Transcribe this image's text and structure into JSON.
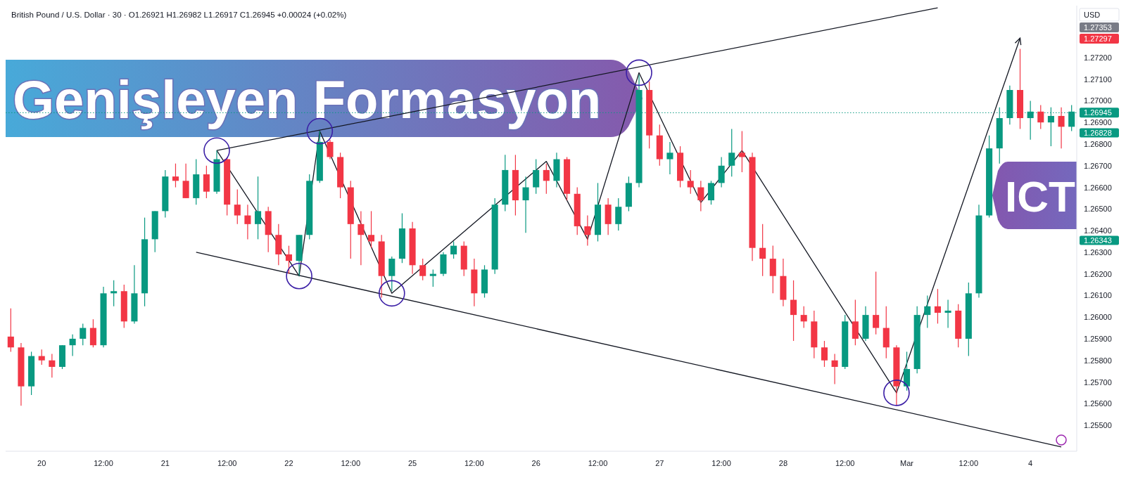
{
  "chart_data": {
    "type": "candlestick",
    "title": "Genişleyen Formasyon",
    "subtitle": "ICT",
    "annotations": [
      "British Pound / U.S. Dollar · 30 · O1.26921 H1.26982 L1.26917 C1.26945 +0.00024 (+0.02%)",
      "USD",
      "1.27353",
      "1.27297",
      "1.26828",
      "1.26343"
    ],
    "categories": [
      null,
      null,
      null,
      "20",
      null,
      null,
      null,
      null,
      null,
      "12:00",
      null,
      null,
      null,
      null,
      null,
      "21",
      null,
      null,
      null,
      null,
      null,
      "12:00",
      null,
      null,
      null,
      null,
      null,
      "22",
      null,
      null,
      null,
      null,
      null,
      "12:00",
      null,
      null,
      null,
      null,
      null,
      "25",
      null,
      null,
      null,
      null,
      null,
      "12:00",
      null,
      null,
      null,
      null,
      null,
      "26",
      null,
      null,
      null,
      null,
      null,
      "12:00",
      null,
      null,
      null,
      null,
      null,
      "27",
      null,
      null,
      null,
      null,
      null,
      "12:00",
      null,
      null,
      null,
      null,
      null,
      "28",
      null,
      null,
      null,
      null,
      null,
      "12:00",
      null,
      null,
      null,
      null,
      null,
      "Mar",
      null,
      null,
      null,
      null,
      null,
      "12:00",
      null,
      null,
      null,
      null,
      null,
      "4",
      null,
      null,
      null,
      null
    ],
    "ohlc": [
      [
        1.2591,
        1.2604,
        1.2584,
        1.2586
      ],
      [
        1.2586,
        1.2588,
        1.2559,
        1.2568
      ],
      [
        1.2568,
        1.2584,
        1.2564,
        1.2582
      ],
      [
        1.2582,
        1.2585,
        1.2578,
        1.258
      ],
      [
        1.258,
        1.2583,
        1.2572,
        1.2577
      ],
      [
        1.2577,
        1.2587,
        1.2576,
        1.2587
      ],
      [
        1.2587,
        1.2592,
        1.2582,
        1.259
      ],
      [
        1.259,
        1.2597,
        1.2587,
        1.2595
      ],
      [
        1.2595,
        1.2599,
        1.2586,
        1.2587
      ],
      [
        1.2587,
        1.2614,
        1.2586,
        1.2611
      ],
      [
        1.2611,
        1.2617,
        1.2605,
        1.2612
      ],
      [
        1.2612,
        1.2615,
        1.2595,
        1.2598
      ],
      [
        1.2598,
        1.2624,
        1.2597,
        1.2611
      ],
      [
        1.2611,
        1.2646,
        1.2605,
        1.2636
      ],
      [
        1.2636,
        1.2649,
        1.263,
        1.2649
      ],
      [
        1.2649,
        1.2668,
        1.2646,
        1.2665
      ],
      [
        1.2665,
        1.2671,
        1.266,
        1.2663
      ],
      [
        1.2663,
        1.2671,
        1.2655,
        1.2655
      ],
      [
        1.2655,
        1.2673,
        1.2652,
        1.2666
      ],
      [
        1.2666,
        1.267,
        1.2655,
        1.2658
      ],
      [
        1.2658,
        1.2677,
        1.2657,
        1.2673
      ],
      [
        1.2673,
        1.2674,
        1.2647,
        1.2652
      ],
      [
        1.2652,
        1.2659,
        1.2643,
        1.2647
      ],
      [
        1.2647,
        1.2652,
        1.2636,
        1.2643
      ],
      [
        1.2643,
        1.2665,
        1.2636,
        1.2649
      ],
      [
        1.2649,
        1.2651,
        1.263,
        1.2638
      ],
      [
        1.2638,
        1.2643,
        1.2624,
        1.2629
      ],
      [
        1.2629,
        1.2633,
        1.262,
        1.2626
      ],
      [
        1.2626,
        1.2638,
        1.2619,
        1.2638
      ],
      [
        1.2638,
        1.2666,
        1.2636,
        1.2663
      ],
      [
        1.2663,
        1.2686,
        1.2662,
        1.2681
      ],
      [
        1.2681,
        1.2682,
        1.2673,
        1.2674
      ],
      [
        1.2674,
        1.2676,
        1.2655,
        1.266
      ],
      [
        1.266,
        1.2663,
        1.2627,
        1.2643
      ],
      [
        1.2643,
        1.2649,
        1.2624,
        1.2638
      ],
      [
        1.2638,
        1.2649,
        1.2632,
        1.2635
      ],
      [
        1.2635,
        1.2638,
        1.2609,
        1.2619
      ],
      [
        1.2619,
        1.2628,
        1.2612,
        1.2627
      ],
      [
        1.2627,
        1.2648,
        1.2625,
        1.2641
      ],
      [
        1.2641,
        1.2644,
        1.262,
        1.2624
      ],
      [
        1.2624,
        1.2627,
        1.2617,
        1.2619
      ],
      [
        1.2619,
        1.2622,
        1.2614,
        1.262
      ],
      [
        1.262,
        1.263,
        1.2619,
        1.2629
      ],
      [
        1.2629,
        1.2635,
        1.2627,
        1.2633
      ],
      [
        1.2633,
        1.2635,
        1.2619,
        1.2622
      ],
      [
        1.2622,
        1.2627,
        1.2605,
        1.2611
      ],
      [
        1.2611,
        1.2624,
        1.2609,
        1.2622
      ],
      [
        1.2622,
        1.2655,
        1.262,
        1.2652
      ],
      [
        1.2652,
        1.2675,
        1.2649,
        1.2668
      ],
      [
        1.2668,
        1.2675,
        1.2647,
        1.2654
      ],
      [
        1.2654,
        1.2665,
        1.2639,
        1.266
      ],
      [
        1.266,
        1.2673,
        1.2657,
        1.2668
      ],
      [
        1.2668,
        1.2671,
        1.2657,
        1.2663
      ],
      [
        1.2663,
        1.2676,
        1.266,
        1.2673
      ],
      [
        1.2673,
        1.2674,
        1.2654,
        1.2657
      ],
      [
        1.2657,
        1.266,
        1.2638,
        1.2642
      ],
      [
        1.2642,
        1.2647,
        1.2633,
        1.2638
      ],
      [
        1.2638,
        1.2662,
        1.2635,
        1.2652
      ],
      [
        1.2652,
        1.2655,
        1.2638,
        1.2643
      ],
      [
        1.2643,
        1.2655,
        1.264,
        1.2651
      ],
      [
        1.2651,
        1.2665,
        1.2649,
        1.2662
      ],
      [
        1.2662,
        1.2712,
        1.266,
        1.2705
      ],
      [
        1.2705,
        1.2709,
        1.2678,
        1.2684
      ],
      [
        1.2684,
        1.2689,
        1.267,
        1.2673
      ],
      [
        1.2673,
        1.2681,
        1.2666,
        1.2676
      ],
      [
        1.2676,
        1.2679,
        1.266,
        1.2663
      ],
      [
        1.2663,
        1.2668,
        1.2657,
        1.266
      ],
      [
        1.266,
        1.2663,
        1.2649,
        1.2654
      ],
      [
        1.2654,
        1.2663,
        1.2652,
        1.2662
      ],
      [
        1.2662,
        1.2674,
        1.266,
        1.267
      ],
      [
        1.267,
        1.2687,
        1.2665,
        1.2676
      ],
      [
        1.2676,
        1.2686,
        1.2667,
        1.2674
      ],
      [
        1.2674,
        1.2676,
        1.2626,
        1.2632
      ],
      [
        1.2632,
        1.2643,
        1.2619,
        1.2627
      ],
      [
        1.2627,
        1.2633,
        1.2611,
        1.2619
      ],
      [
        1.2619,
        1.2627,
        1.2605,
        1.2608
      ],
      [
        1.2608,
        1.2617,
        1.2589,
        1.2601
      ],
      [
        1.2601,
        1.2605,
        1.2595,
        1.2598
      ],
      [
        1.2598,
        1.2603,
        1.2581,
        1.2586
      ],
      [
        1.2586,
        1.2589,
        1.2577,
        1.258
      ],
      [
        1.258,
        1.2583,
        1.2569,
        1.2577
      ],
      [
        1.2577,
        1.2601,
        1.2576,
        1.2598
      ],
      [
        1.2598,
        1.2608,
        1.2587,
        1.259
      ],
      [
        1.259,
        1.2605,
        1.2589,
        1.2601
      ],
      [
        1.2601,
        1.2621,
        1.2592,
        1.2595
      ],
      [
        1.2595,
        1.2605,
        1.2581,
        1.2586
      ],
      [
        1.2586,
        1.2587,
        1.2559,
        1.2568
      ],
      [
        1.2568,
        1.2584,
        1.2566,
        1.2576
      ],
      [
        1.2576,
        1.2605,
        1.2574,
        1.2601
      ],
      [
        1.2601,
        1.261,
        1.2595,
        1.2605
      ],
      [
        1.2605,
        1.2613,
        1.2597,
        1.2602
      ],
      [
        1.2602,
        1.2608,
        1.2595,
        1.2603
      ],
      [
        1.2603,
        1.2606,
        1.2586,
        1.259
      ],
      [
        1.259,
        1.2616,
        1.2582,
        1.2611
      ],
      [
        1.2611,
        1.2652,
        1.2609,
        1.2647
      ],
      [
        1.2647,
        1.2684,
        1.2646,
        1.2678
      ],
      [
        1.2678,
        1.2697,
        1.2671,
        1.2692
      ],
      [
        1.2692,
        1.2707,
        1.2689,
        1.2705
      ],
      [
        1.2705,
        1.2724,
        1.2687,
        1.2692
      ],
      [
        1.2692,
        1.27,
        1.2682,
        1.2695
      ],
      [
        1.2695,
        1.2698,
        1.2687,
        1.269
      ],
      [
        1.269,
        1.2697,
        1.2679,
        1.2693
      ],
      [
        1.2693,
        1.2697,
        1.2678,
        1.2688
      ],
      [
        1.2688,
        1.2698,
        1.2686,
        1.2695
      ]
    ],
    "series": [
      {
        "type": "line",
        "color": "#131722",
        "values": [
          null,
          null,
          null,
          null,
          null,
          null,
          null,
          null,
          null,
          null,
          null,
          null,
          null,
          null,
          null,
          null,
          null,
          null,
          null,
          null,
          1.2677,
          null,
          null,
          null,
          null,
          null,
          null,
          null,
          null,
          null,
          null,
          null,
          null,
          null,
          null,
          null,
          null,
          null,
          null,
          null,
          null,
          null,
          null,
          null,
          null,
          null,
          null,
          null,
          null,
          null,
          null,
          null,
          null,
          null,
          null,
          null,
          null,
          null,
          null,
          null,
          null,
          null,
          null,
          null,
          null,
          null,
          null,
          null,
          null,
          null,
          null,
          null,
          null,
          null,
          null,
          null,
          null,
          null,
          null,
          null,
          null,
          null,
          null,
          null,
          null,
          null,
          null,
          null,
          null,
          null,
          1.2743,
          null,
          null,
          null,
          null,
          null,
          null,
          null,
          null,
          null,
          null,
          null,
          null,
          null
        ]
      },
      {
        "type": "line",
        "color": "#131722",
        "values": [
          null,
          null,
          null,
          null,
          null,
          null,
          null,
          null,
          null,
          null,
          null,
          null,
          null,
          null,
          null,
          null,
          null,
          null,
          1.263,
          null,
          null,
          null,
          null,
          null,
          null,
          null,
          null,
          null,
          null,
          null,
          null,
          null,
          null,
          null,
          null,
          null,
          null,
          null,
          null,
          null,
          null,
          null,
          null,
          null,
          null,
          null,
          null,
          null,
          null,
          null,
          null,
          null,
          null,
          null,
          null,
          null,
          null,
          null,
          null,
          null,
          null,
          null,
          null,
          null,
          null,
          null,
          null,
          null,
          null,
          null,
          null,
          null,
          null,
          null,
          null,
          null,
          null,
          null,
          null,
          null,
          null,
          null,
          null,
          null,
          null,
          null,
          null,
          null,
          null,
          null,
          null,
          null,
          null,
          null,
          null,
          null,
          null,
          null,
          null,
          null,
          null,
          null,
          1.254,
          null
        ]
      },
      {
        "type": "line",
        "color": "#131722",
        "values": [
          null,
          null,
          null,
          null,
          null,
          null,
          null,
          null,
          null,
          null,
          null,
          null,
          null,
          null,
          null,
          null,
          null,
          null,
          null,
          null,
          1.2677,
          null,
          null,
          null,
          null,
          null,
          null,
          null,
          1.2619,
          null,
          1.2686,
          null,
          null,
          null,
          null,
          null,
          null,
          1.2611,
          null,
          null,
          null,
          null,
          null,
          null,
          null,
          null,
          null,
          null,
          null,
          null,
          null,
          null,
          1.2672,
          null,
          null,
          null,
          1.2636,
          null,
          null,
          null,
          null,
          1.2713,
          null,
          null,
          null,
          null,
          null,
          1.2653,
          null,
          null,
          null,
          1.2677,
          null,
          null,
          null,
          null,
          null,
          null,
          null,
          null,
          null,
          null,
          null,
          null,
          null,
          null,
          1.2565,
          null,
          null,
          null,
          null,
          null,
          null,
          null,
          null,
          null,
          null,
          null,
          1.2729,
          null,
          null,
          null,
          null,
          null
        ]
      }
    ],
    "ref_lines": [
      {
        "axis": "y",
        "value": 1.26945,
        "label": "1.26945",
        "color": "#089981",
        "line_style": "dotted"
      }
    ],
    "ylim": [
      1.2538,
      1.2744
    ],
    "yticks": [
      {
        "value": 1.255,
        "label": "1.25500"
      },
      {
        "value": 1.256,
        "label": "1.25600"
      },
      {
        "value": 1.257,
        "label": "1.25700"
      },
      {
        "value": 1.258,
        "label": "1.25800"
      },
      {
        "value": 1.259,
        "label": "1.25900"
      },
      {
        "value": 1.26,
        "label": "1.26000"
      },
      {
        "value": 1.261,
        "label": "1.26100"
      },
      {
        "value": 1.262,
        "label": "1.26200"
      },
      {
        "value": 1.263,
        "label": "1.26300"
      },
      {
        "value": 1.264,
        "label": "1.26400"
      },
      {
        "value": 1.265,
        "label": "1.26500"
      },
      {
        "value": 1.266,
        "label": "1.26600"
      },
      {
        "value": 1.267,
        "label": "1.26700"
      },
      {
        "value": 1.268,
        "label": "1.26800"
      },
      {
        "value": 1.269,
        "label": "1.26900"
      },
      {
        "value": 1.27,
        "label": "1.27000"
      },
      {
        "value": 1.271,
        "label": "1.27100"
      },
      {
        "value": 1.272,
        "label": "1.27200"
      }
    ]
  }
}
